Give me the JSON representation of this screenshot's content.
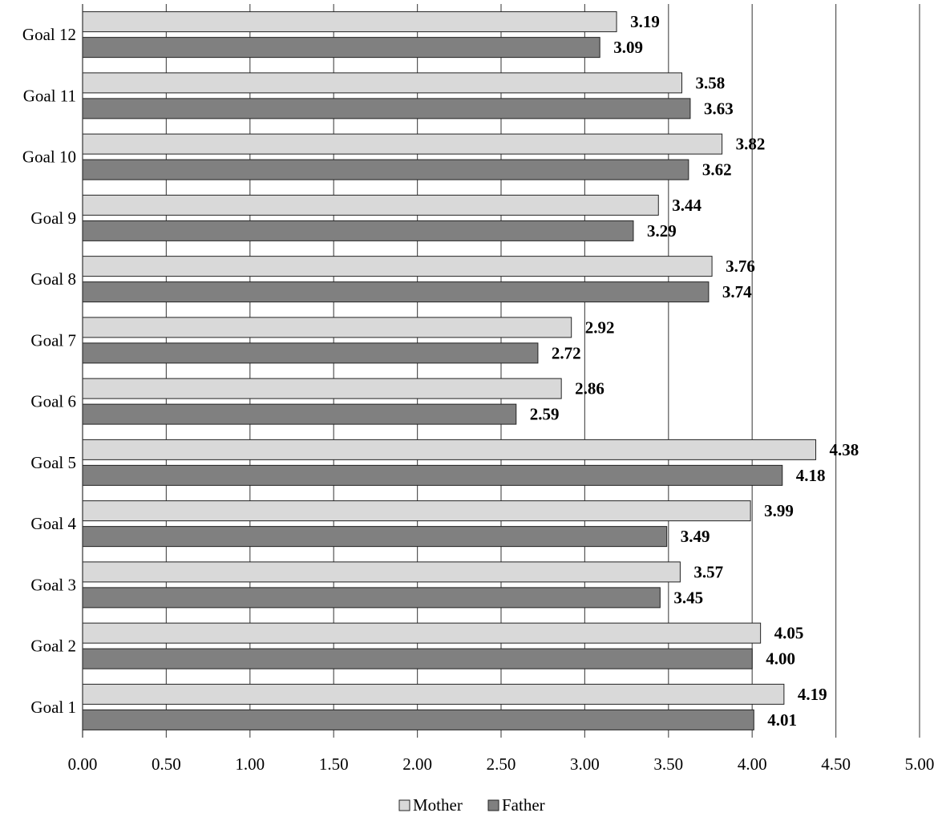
{
  "chart_data": {
    "type": "bar",
    "orientation": "horizontal",
    "categories": [
      "Goal 12",
      "Goal 11",
      "Goal 10",
      "Goal 9",
      "Goal 8",
      "Goal 7",
      "Goal 6",
      "Goal 5",
      "Goal 4",
      "Goal 3",
      "Goal 2",
      "Goal 1"
    ],
    "series": [
      {
        "name": "Mother",
        "color": "#d9d9d9",
        "values": [
          3.19,
          3.58,
          3.82,
          3.44,
          3.76,
          2.92,
          2.86,
          4.38,
          3.99,
          3.57,
          4.05,
          4.19
        ],
        "labels": [
          "3.19",
          "3.58",
          "3.82",
          "3.44",
          "3.76",
          "2.92",
          "2.86",
          "4.38",
          "3.99",
          "3.57",
          "4.05",
          "4.19"
        ]
      },
      {
        "name": "Father",
        "color": "#808080",
        "values": [
          3.09,
          3.63,
          3.62,
          3.29,
          3.74,
          2.72,
          2.59,
          4.18,
          3.49,
          3.45,
          4.0,
          4.01
        ],
        "labels": [
          "3.09",
          "3.63",
          "3.62",
          "3.29",
          "3.74",
          "2.72",
          "2.59",
          "4.18",
          "3.49",
          "3.45",
          "4.00",
          "4.01"
        ]
      }
    ],
    "xlim": [
      0,
      5
    ],
    "x_ticks": [
      "0.00",
      "0.50",
      "1.00",
      "1.50",
      "2.00",
      "2.50",
      "3.00",
      "3.50",
      "4.00",
      "4.50",
      "5.00"
    ],
    "grid": "vertical",
    "legend": "bottom",
    "title": "",
    "xlabel": "",
    "ylabel": ""
  }
}
